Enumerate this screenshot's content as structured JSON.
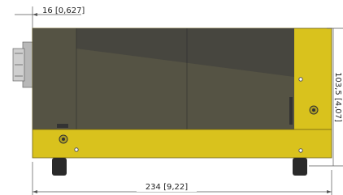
{
  "dimensions": {
    "offset": "16 [0,627]",
    "length": "234 [9,22]",
    "height": "103,5 [4,07]"
  }
}
